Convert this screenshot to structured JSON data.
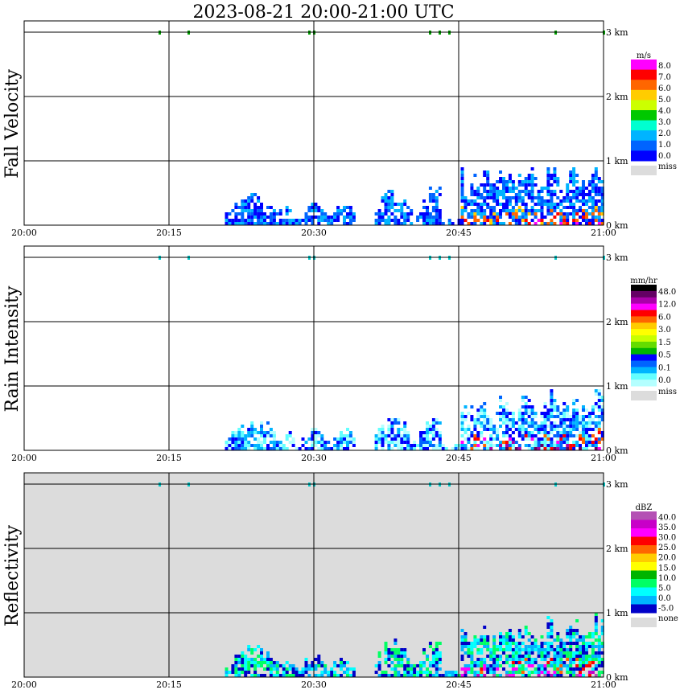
{
  "title": "2023-08-21   20:00-21:00 UTC",
  "x_ticks": [
    "20:00",
    "20:15",
    "20:30",
    "20:45",
    "21:00"
  ],
  "y_ticks": [
    "3 km",
    "2 km",
    "1 km",
    "0 km"
  ],
  "chart_data": [
    {
      "type": "heatmap",
      "ylabel": "Fall Velocity",
      "x_range": [
        "20:00",
        "21:00"
      ],
      "y_range_km": [
        0,
        3
      ],
      "legend": {
        "unit": "m/s",
        "labels": [
          "8.0",
          "7.0",
          "6.0",
          "5.0",
          "4.0",
          "3.0",
          "2.0",
          "1.0",
          "0.0"
        ],
        "colors": [
          "#ff00ff",
          "#ff0000",
          "#ff6600",
          "#ffcc00",
          "#ccff00",
          "#00c800",
          "#00ffd0",
          "#00b4ff",
          "#0064ff",
          "#0000ff"
        ],
        "missing_label": "miss",
        "missing_color": "#dcdcdc"
      }
    },
    {
      "type": "heatmap",
      "ylabel": "Rain Intensity",
      "x_range": [
        "20:00",
        "21:00"
      ],
      "y_range_km": [
        0,
        3
      ],
      "legend": {
        "unit": "mm/hr",
        "labels": [
          "48.0",
          "12.0",
          "6.0",
          "3.0",
          "1.5",
          "0.5",
          "0.1",
          "0.0"
        ],
        "colors": [
          "#000000",
          "#640064",
          "#aa00aa",
          "#ff00ff",
          "#ff0000",
          "#ff6600",
          "#ffcc00",
          "#ffff00",
          "#c8ff00",
          "#64dc00",
          "#00b400",
          "#0000ff",
          "#0064ff",
          "#00b4ff",
          "#64ffff",
          "#b4ffff"
        ],
        "missing_label": "miss",
        "missing_color": "#dcdcdc"
      }
    },
    {
      "type": "heatmap",
      "ylabel": "Reflectivity",
      "x_range": [
        "20:00",
        "21:00"
      ],
      "y_range_km": [
        0,
        3
      ],
      "legend": {
        "unit": "dBZ",
        "labels": [
          "40.0",
          "35.0",
          "30.0",
          "25.0",
          "20.0",
          "15.0",
          "10.0",
          "5.0",
          "0.0",
          "-5.0"
        ],
        "colors": [
          "#b450b4",
          "#c800c8",
          "#ff00ff",
          "#ff0000",
          "#ff6600",
          "#ffcc00",
          "#ffff00",
          "#00b400",
          "#00ff64",
          "#00ffff",
          "#00b4ff",
          "#0000c8"
        ],
        "missing_label": "none",
        "missing_color": "#dcdcdc"
      }
    }
  ]
}
